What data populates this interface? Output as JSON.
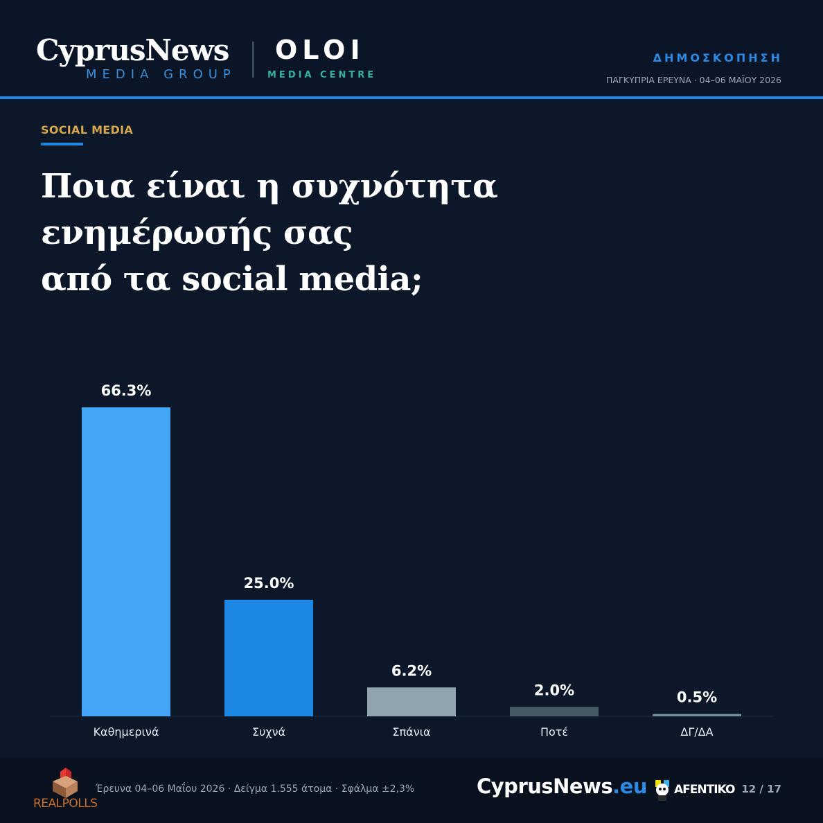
{
  "header": {
    "brand_main": "CyprusNews",
    "brand_sub": "MEDIA GROUP",
    "partner_main": "OLOI",
    "partner_sub": "MEDIA CENTRE",
    "tag": "ΔΗΜΟΣΚΟΠΗΣΗ",
    "meta": "ΠΑΓΚΥΠΡΙΑ ΕΡΕΥΝΑ · 04–06 ΜΑΪΟΥ 2026"
  },
  "section": "SOCIAL MEDIA",
  "question_lines": [
    "Ποια είναι η συχνότητα",
    "ενημέρωσής σας",
    "από τα social media;"
  ],
  "chart_data": {
    "type": "bar",
    "categories": [
      "Καθημερινά",
      "Συχνά",
      "Σπάνια",
      "Ποτέ",
      "ΔΓ/ΔΑ"
    ],
    "values": [
      66.3,
      25.0,
      6.2,
      2.0,
      0.5
    ],
    "value_labels": [
      "66.3%",
      "25.0%",
      "6.2%",
      "2.0%",
      "0.5%"
    ],
    "bar_colors": [
      "#42a5f5",
      "#1e88e5",
      "#90a4ae",
      "#455a64",
      "#78909c"
    ],
    "title": "",
    "xlabel": "",
    "ylabel": "",
    "ylim": [
      0,
      66.3
    ],
    "grid": false,
    "legend": "none"
  },
  "footer": {
    "pollster": "REALPOLLS",
    "info": "Έρευνα 04–06 Μαΐου 2026  ·  Δείγμα 1.555 άτομα  ·  Σφάλμα ±2,3%",
    "site_name": "CyprusNews",
    "site_tld": ".eu",
    "separator": "·",
    "partner": "AFENTIKO",
    "page": "12 / 17"
  },
  "colors": {
    "background": "#0c1829",
    "accent": "#1f86e0",
    "section": "#d8a84a"
  }
}
